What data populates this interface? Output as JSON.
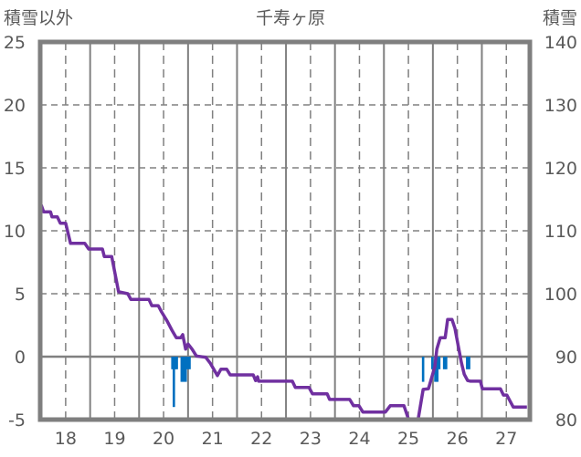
{
  "chart_data": {
    "type": "line+bar",
    "title": "千寿ヶ原",
    "left_axis_label": "積雪以外",
    "right_axis_label": "積雪",
    "left_ylim": [
      -5,
      25
    ],
    "right_ylim": [
      80,
      140
    ],
    "left_ticks": [
      "25",
      "20",
      "15",
      "10",
      "5",
      "0",
      "-5"
    ],
    "left_tick_values": [
      25,
      20,
      15,
      10,
      5,
      0,
      -5
    ],
    "right_ticks": [
      "140",
      "130",
      "120",
      "110",
      "100",
      "90",
      "80"
    ],
    "right_tick_values": [
      140,
      130,
      120,
      110,
      100,
      90,
      80
    ],
    "xlim": [
      17.48,
      27.48
    ],
    "x_ticks": [
      "18",
      "19",
      "20",
      "21",
      "22",
      "23",
      "24",
      "25",
      "26",
      "27"
    ],
    "x_tick_values": [
      18,
      19,
      20,
      21,
      22,
      23,
      24,
      25,
      26,
      27
    ],
    "grid": true,
    "colors": {
      "snow_depth": "#7030A0",
      "bars": "#0070C0",
      "grid": "#808080",
      "frame": "#7f7f7f"
    },
    "series": [
      {
        "name": "積雪",
        "axis": "right",
        "type": "line",
        "points": [
          [
            17.5,
            114.1
          ],
          [
            17.55,
            113.0
          ],
          [
            17.69,
            113.0
          ],
          [
            17.72,
            112.2
          ],
          [
            17.83,
            112.2
          ],
          [
            17.89,
            111.2
          ],
          [
            18.0,
            111.2
          ],
          [
            18.1,
            108.0
          ],
          [
            18.39,
            108.0
          ],
          [
            18.47,
            107.1
          ],
          [
            18.75,
            107.1
          ],
          [
            18.79,
            105.9
          ],
          [
            18.94,
            105.9
          ],
          [
            19.08,
            100.3
          ],
          [
            19.27,
            100.0
          ],
          [
            19.33,
            99.1
          ],
          [
            19.7,
            99.1
          ],
          [
            19.76,
            98.1
          ],
          [
            19.89,
            98.1
          ],
          [
            19.96,
            97.1
          ],
          [
            20.07,
            95.7
          ],
          [
            20.17,
            94.2
          ],
          [
            20.26,
            93.0
          ],
          [
            20.35,
            93.0
          ],
          [
            20.39,
            93.5
          ],
          [
            20.45,
            91.2
          ],
          [
            20.5,
            92.0
          ],
          [
            20.58,
            91.2
          ],
          [
            20.67,
            90.1
          ],
          [
            20.86,
            89.9
          ],
          [
            20.95,
            89.0
          ],
          [
            21.1,
            87.0
          ],
          [
            21.17,
            88.0
          ],
          [
            21.29,
            88.0
          ],
          [
            21.36,
            87.1
          ],
          [
            21.83,
            87.1
          ],
          [
            21.88,
            86.2
          ],
          [
            21.92,
            86.8
          ],
          [
            21.94,
            86.1
          ],
          [
            22.63,
            86.1
          ],
          [
            22.69,
            85.1
          ],
          [
            22.97,
            85.1
          ],
          [
            23.04,
            84.1
          ],
          [
            23.34,
            84.1
          ],
          [
            23.39,
            83.2
          ],
          [
            23.8,
            83.2
          ],
          [
            23.88,
            82.2
          ],
          [
            23.99,
            82.2
          ],
          [
            24.07,
            81.2
          ],
          [
            24.53,
            81.2
          ],
          [
            24.63,
            82.2
          ],
          [
            24.91,
            82.2
          ],
          [
            25.0,
            80.1
          ],
          [
            25.2,
            80.1
          ],
          [
            25.3,
            84.8
          ],
          [
            25.41,
            84.9
          ],
          [
            25.54,
            88.4
          ],
          [
            25.58,
            91.2
          ],
          [
            25.65,
            93.0
          ],
          [
            25.75,
            93.0
          ],
          [
            25.8,
            95.9
          ],
          [
            25.89,
            95.9
          ],
          [
            25.95,
            94.5
          ],
          [
            26.08,
            89.1
          ],
          [
            26.14,
            87.2
          ],
          [
            26.21,
            86.2
          ],
          [
            26.27,
            86.1
          ],
          [
            26.47,
            86.1
          ],
          [
            26.51,
            84.9
          ],
          [
            26.88,
            84.9
          ],
          [
            26.94,
            83.9
          ],
          [
            27.01,
            83.9
          ],
          [
            27.14,
            82.0
          ],
          [
            27.42,
            82.0
          ]
        ]
      },
      {
        "name": "積雪以外",
        "axis": "left",
        "type": "bar",
        "points": [
          [
            20.18,
            -1
          ],
          [
            20.21,
            -4
          ],
          [
            20.24,
            -1
          ],
          [
            20.27,
            -1
          ],
          [
            20.37,
            -2
          ],
          [
            20.41,
            -2
          ],
          [
            20.45,
            -2
          ],
          [
            20.49,
            -1
          ],
          [
            20.53,
            -1
          ],
          [
            25.3,
            -2
          ],
          [
            25.49,
            -1
          ],
          [
            25.55,
            -2
          ],
          [
            25.59,
            -2
          ],
          [
            25.63,
            -1
          ],
          [
            25.73,
            -1
          ],
          [
            25.77,
            -1
          ],
          [
            26.2,
            -1
          ],
          [
            26.24,
            -1
          ]
        ]
      }
    ]
  }
}
